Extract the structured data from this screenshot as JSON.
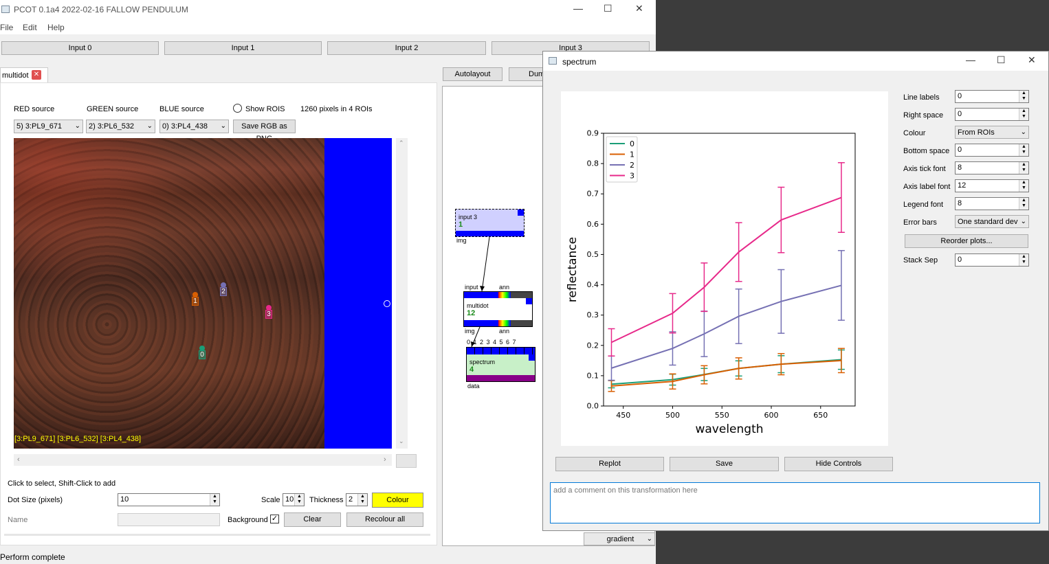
{
  "main_window": {
    "title": "PCOT 0.1a4 2022-02-16 FALLOW PENDULUM",
    "menu": [
      "File",
      "Edit",
      "Help"
    ],
    "input_buttons": [
      "Input 0",
      "Input 1",
      "Input 2",
      "Input 3"
    ],
    "tab_label": "multidot",
    "red_source_label": "RED source",
    "green_source_label": "GREEN source",
    "blue_source_label": "BLUE source",
    "show_rois_label": "Show ROIS",
    "pixels_info": "1260 pixels in 4 ROIs",
    "red_source_value": "5) 3:PL9_671",
    "green_source_value": "2) 3:PL6_532",
    "blue_source_value": "0) 3:PL4_438",
    "save_rgb_label": "Save RGB as PNG",
    "image_caption": "[3:PL9_671] [3:PL6_532] [3:PL4_438]",
    "roi_markers": [
      "0",
      "1",
      "2",
      "3"
    ],
    "instructions": "Click to select, Shift-Click to add",
    "dot_size_label": "Dot Size (pixels)",
    "dot_size_value": "10",
    "scale_label": "Scale",
    "scale_value": "10",
    "thickness_label": "Thickness",
    "thickness_value": "2",
    "colour_label": "Colour",
    "name_label": "Name",
    "background_label": "Background",
    "clear_label": "Clear",
    "recolour_label": "Recolour all",
    "status": "Perform complete",
    "autolayout_label": "Autolayout",
    "dump_label": "Dum",
    "gradient_value": "gradient",
    "graph": {
      "input_node": {
        "title": "input 3",
        "num": "1",
        "out": "img"
      },
      "multidot_node": {
        "title": "multidot",
        "num": "12",
        "in1": "input",
        "in2": "ann",
        "out1": "img",
        "out2": "ann"
      },
      "spectrum_node": {
        "title": "spectrum",
        "num": "4",
        "ports": "0 1 2 3 4 5 6 7",
        "out": "data"
      }
    }
  },
  "spectrum_window": {
    "title": "spectrum",
    "controls": [
      {
        "label": "Line labels",
        "value": "0",
        "kind": "spin"
      },
      {
        "label": "Right space",
        "value": "0",
        "kind": "spin"
      },
      {
        "label": "Colour",
        "value": "From ROIs",
        "kind": "combo"
      },
      {
        "label": "Bottom space",
        "value": "0",
        "kind": "spin"
      },
      {
        "label": "Axis tick font",
        "value": "8",
        "kind": "spin"
      },
      {
        "label": "Axis label font",
        "value": "12",
        "kind": "spin"
      },
      {
        "label": "Legend font",
        "value": "8",
        "kind": "spin"
      },
      {
        "label": "Error bars",
        "value": "One standard dev",
        "kind": "combo"
      }
    ],
    "reorder_label": "Reorder plots...",
    "stack_sep_label": "Stack Sep",
    "stack_sep_value": "0",
    "replot_label": "Replot",
    "save_label": "Save",
    "hide_controls_label": "Hide Controls",
    "comment_placeholder": "add a comment on this transformation here"
  },
  "chart_data": {
    "type": "line",
    "xlabel": "wavelength",
    "ylabel": "reflectance",
    "xlim": [
      430,
      685
    ],
    "ylim": [
      0,
      0.9
    ],
    "xticks": [
      450,
      500,
      550,
      600,
      650
    ],
    "yticks": [
      0.0,
      0.1,
      0.2,
      0.3,
      0.4,
      0.5,
      0.6,
      0.7,
      0.8,
      0.9
    ],
    "legend_position": "top-left",
    "x": [
      438,
      500,
      532,
      567,
      610,
      671
    ],
    "series": [
      {
        "name": "0",
        "color": "#1b9e77",
        "values": [
          0.072,
          0.087,
          0.104,
          0.124,
          0.138,
          0.153
        ],
        "errors": [
          0.012,
          0.018,
          0.02,
          0.025,
          0.028,
          0.032
        ]
      },
      {
        "name": "1",
        "color": "#d95f02",
        "values": [
          0.066,
          0.081,
          0.103,
          0.124,
          0.138,
          0.15
        ],
        "errors": [
          0.018,
          0.025,
          0.03,
          0.035,
          0.035,
          0.04
        ]
      },
      {
        "name": "2",
        "color": "#7570b3",
        "values": [
          0.125,
          0.19,
          0.238,
          0.296,
          0.345,
          0.398
        ],
        "errors": [
          0.04,
          0.055,
          0.075,
          0.09,
          0.105,
          0.115
        ]
      },
      {
        "name": "3",
        "color": "#e7298a",
        "values": [
          0.21,
          0.306,
          0.392,
          0.508,
          0.614,
          0.688
        ],
        "errors": [
          0.045,
          0.065,
          0.08,
          0.097,
          0.108,
          0.115
        ]
      }
    ]
  }
}
